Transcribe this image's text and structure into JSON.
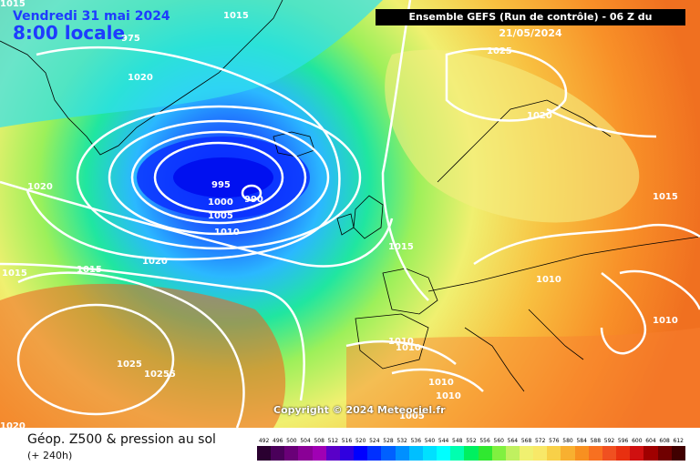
{
  "header": {
    "date": "Vendredi 31 mai 2024",
    "local_time": "8:00 locale",
    "run_info": "Ensemble GEFS  (Run de contrôle)  -  06 Z du 21/05/2024"
  },
  "copyright": "Copyright © 2024 Meteociel.fr",
  "footer": {
    "title": "Géop. Z500 & pression au sol",
    "subtitle": "(+ 240h)"
  },
  "legend": {
    "values": [
      "492",
      "496",
      "500",
      "504",
      "508",
      "512",
      "516",
      "520",
      "524",
      "528",
      "532",
      "536",
      "540",
      "544",
      "548",
      "552",
      "556",
      "560",
      "564",
      "568",
      "572",
      "576",
      "580",
      "584",
      "588",
      "592",
      "596",
      "600",
      "604",
      "608",
      "612"
    ],
    "colors": [
      "#2a0030",
      "#4a005a",
      "#6a0078",
      "#8a0096",
      "#a000b4",
      "#5a00c8",
      "#3000e0",
      "#0000ff",
      "#0030ff",
      "#0060ff",
      "#0090ff",
      "#00bfff",
      "#00e0ff",
      "#00ffff",
      "#00ffb0",
      "#00f060",
      "#30e830",
      "#80f040",
      "#c0f060",
      "#f0f070",
      "#f8e868",
      "#f8d048",
      "#f8b030",
      "#f89020",
      "#f87020",
      "#f05020",
      "#e83010",
      "#d01010",
      "#a00000",
      "#700000",
      "#400000"
    ]
  },
  "pressure_labels": {
    "l1015_top": "1015",
    "l1015_tl": "1015",
    "l975": "975",
    "l1020_nw": "1020",
    "l1025_ne": "1025",
    "l1020_scand": "1020",
    "l1020_w": "1020",
    "l995": "995",
    "l1000": "1000",
    "l1005": "1005",
    "l990": "990",
    "l1010_low": "1010",
    "l1015_e": "1015",
    "l1015_w": "1015",
    "l1015_fr": "1015",
    "l1015_mid": "1015",
    "l1020_mid": "1020",
    "l1010_cen": "1010",
    "l1010_bal": "1010",
    "l1010_ib1": "1010",
    "l1010_ib2": "1010",
    "l1025_h": "1025",
    "l10255": "10255",
    "l1010_med1": "1010",
    "l1010_med2": "1010",
    "l1020_bl": "1020",
    "l1005_it": "1005"
  }
}
